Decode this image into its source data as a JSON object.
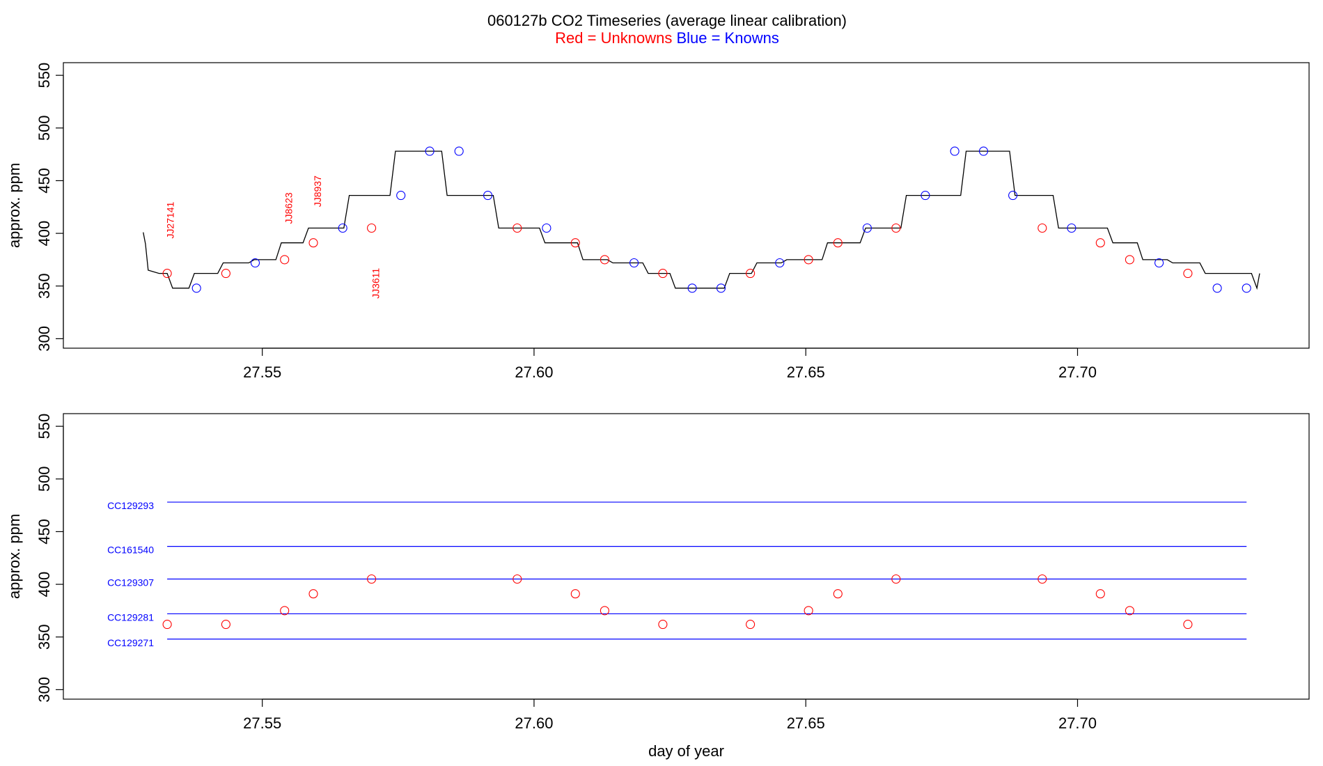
{
  "figure": {
    "title": "060127b   CO2 Timeseries (average linear calibration)",
    "legend": {
      "red_text": "Red = Unknowns",
      "blue_text": "Blue = Knowns",
      "red_color": "#ff0000",
      "blue_color": "#0000ff"
    }
  },
  "chart_data": [
    {
      "type": "line",
      "panel": "top",
      "title": "",
      "xlabel": "",
      "ylabel": "approx. ppm",
      "xlim": [
        27.5134,
        27.7426
      ],
      "ylim": [
        291,
        562
      ],
      "xticks": [
        27.55,
        27.6,
        27.65,
        27.7
      ],
      "xtick_labels": [
        "27.55",
        "27.60",
        "27.65",
        "27.70"
      ],
      "yticks": [
        300,
        350,
        400,
        450,
        500,
        550
      ],
      "ytick_labels": [
        "300",
        "350",
        "400",
        "450",
        "500",
        "550"
      ],
      "grid": false,
      "line_color": "#000000",
      "line": {
        "x": [
          27.5281,
          27.5285,
          27.529,
          27.531,
          27.5325,
          27.5335,
          27.5365,
          27.5375,
          27.5418,
          27.5428,
          27.5475,
          27.5485,
          27.5525,
          27.5535,
          27.5575,
          27.5585,
          27.565,
          27.566,
          27.5735,
          27.5745,
          27.583,
          27.584,
          27.5925,
          27.5935,
          27.601,
          27.602,
          27.608,
          27.609,
          27.6135,
          27.6145,
          27.62,
          27.621,
          27.625,
          27.626,
          27.635,
          27.636,
          27.64,
          27.641,
          27.6455,
          27.6465,
          27.653,
          27.654,
          27.66,
          27.661,
          27.6675,
          27.6685,
          27.6785,
          27.6795,
          27.6875,
          27.6885,
          27.6955,
          27.6965,
          27.7055,
          27.7065,
          27.711,
          27.712,
          27.7165,
          27.7175,
          27.7225,
          27.7235,
          27.732,
          27.733,
          27.7335
        ],
        "y": [
          401,
          390,
          365,
          362,
          362,
          348,
          348,
          362,
          362,
          372,
          372,
          375,
          375,
          391,
          391,
          405,
          405,
          436,
          436,
          478,
          478,
          436,
          436,
          405,
          405,
          391,
          391,
          375,
          375,
          372,
          372,
          362,
          362,
          348,
          348,
          362,
          362,
          372,
          372,
          375,
          375,
          391,
          391,
          405,
          405,
          436,
          436,
          478,
          478,
          436,
          436,
          405,
          405,
          391,
          391,
          375,
          375,
          372,
          372,
          362,
          362,
          348,
          362
        ]
      },
      "series": [
        {
          "name": "Unknowns",
          "color": "#ff0000",
          "x": [
            27.5325,
            27.5433,
            27.5541,
            27.5594,
            27.5701,
            27.5969,
            27.6076,
            27.613,
            27.6237,
            27.6398,
            27.6505,
            27.6559,
            27.6666,
            27.6935,
            27.7042,
            27.7096,
            27.7203
          ],
          "y": [
            362,
            362,
            375,
            391,
            405,
            405,
            391,
            375,
            362,
            362,
            375,
            391,
            405,
            405,
            391,
            375,
            362
          ]
        },
        {
          "name": "Knowns",
          "color": "#0000ff",
          "x": [
            27.5379,
            27.5487,
            27.5648,
            27.5755,
            27.5808,
            27.5862,
            27.5915,
            27.6023,
            27.6184,
            27.6291,
            27.6344,
            27.6452,
            27.6613,
            27.672,
            27.6774,
            27.6827,
            27.6881,
            27.6989,
            27.715,
            27.7257,
            27.7311
          ],
          "y": [
            348,
            372,
            405,
            436,
            478,
            478,
            436,
            405,
            372,
            348,
            348,
            372,
            405,
            436,
            478,
            478,
            436,
            405,
            372,
            348,
            348
          ]
        }
      ],
      "annotations": [
        {
          "text": "JJ27141",
          "x": 27.5337,
          "y": 395
        },
        {
          "text": "JJ8623",
          "x": 27.5555,
          "y": 409
        },
        {
          "text": "JJ8937",
          "x": 27.5608,
          "y": 425
        },
        {
          "text": "JJ3611",
          "x": 27.5715,
          "y": 338
        }
      ]
    },
    {
      "type": "scatter",
      "panel": "bottom",
      "title": "",
      "xlabel": "day of year",
      "ylabel": "approx. ppm",
      "xlim": [
        27.5134,
        27.7426
      ],
      "ylim": [
        291,
        562
      ],
      "xticks": [
        27.55,
        27.6,
        27.65,
        27.7
      ],
      "xtick_labels": [
        "27.55",
        "27.60",
        "27.65",
        "27.70"
      ],
      "yticks": [
        300,
        350,
        400,
        450,
        500,
        550
      ],
      "ytick_labels": [
        "300",
        "350",
        "400",
        "450",
        "500",
        "550"
      ],
      "grid": false,
      "reference_lines": [
        {
          "name": "CC129293",
          "y": 478,
          "color": "#0000ff"
        },
        {
          "name": "CC161540",
          "y": 436,
          "color": "#0000ff"
        },
        {
          "name": "CC129307",
          "y": 405,
          "color": "#0000ff"
        },
        {
          "name": "CC129281",
          "y": 372,
          "color": "#0000ff"
        },
        {
          "name": "CC129271",
          "y": 348,
          "color": "#0000ff"
        }
      ],
      "reference_line_x": [
        27.5325,
        27.7311
      ],
      "series": [
        {
          "name": "Unknowns",
          "color": "#ff0000",
          "x": [
            27.5325,
            27.5433,
            27.5541,
            27.5594,
            27.5701,
            27.5969,
            27.6076,
            27.613,
            27.6237,
            27.6398,
            27.6505,
            27.6559,
            27.6666,
            27.6935,
            27.7042,
            27.7096,
            27.7203
          ],
          "y": [
            362,
            362,
            375,
            391,
            405,
            405,
            391,
            375,
            362,
            362,
            375,
            391,
            405,
            405,
            391,
            375,
            362
          ]
        }
      ]
    }
  ]
}
